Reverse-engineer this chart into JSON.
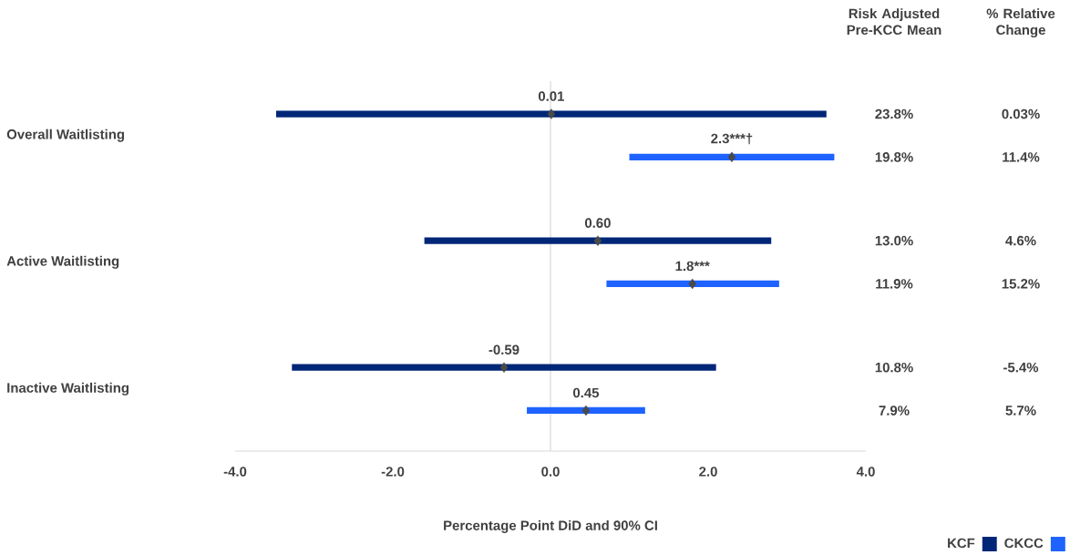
{
  "chart_data": {
    "type": "bar",
    "orientation": "horizontal",
    "xlabel": "Percentage Point DiD and 90% CI",
    "categories": [
      "Overall Waitlisting",
      "Active Waitlisting",
      "Inactive Waitlisting"
    ],
    "xlim": [
      -4,
      4
    ],
    "xticks": [
      {
        "value": -4,
        "label": "-4.0"
      },
      {
        "value": -2,
        "label": "-2.0"
      },
      {
        "value": 0,
        "label": "0.0"
      },
      {
        "value": 2,
        "label": "2.0"
      },
      {
        "value": 4,
        "label": "4.0"
      }
    ],
    "marker": "diamond",
    "legend": "bottom right",
    "ref_lines": [
      {
        "axis": "x",
        "value": 0,
        "color": "#d9d9d9"
      }
    ],
    "series": [
      {
        "name": "KCF",
        "color": "#002677",
        "base": [
          -3.48,
          -1.6,
          -3.28
        ],
        "values": [
          6.98,
          4.4,
          5.38
        ]
      },
      {
        "name": "CKCC",
        "color": "#1e63ff",
        "base": [
          1.0,
          0.71,
          -0.3
        ],
        "values": [
          2.6,
          2.19,
          1.5
        ]
      },
      {
        "type": "scatter",
        "color": "#4a4a4a",
        "x": [
          "Overall Waitlisting",
          "Active Waitlisting",
          "Inactive Waitlisting"
        ],
        "values": [
          0.01,
          0.6,
          -0.59
        ],
        "value_labels": [
          "0.01",
          "0.60",
          "-0.59"
        ]
      },
      {
        "type": "scatter",
        "color": "#4a4a4a",
        "x": [
          "Overall Waitlisting",
          "Active Waitlisting",
          "Inactive Waitlisting"
        ],
        "values": [
          2.3,
          1.8,
          0.45
        ],
        "value_labels": [
          "2.3***†",
          "1.8***",
          "0.45"
        ]
      }
    ],
    "annotations": [
      "Risk Adjusted Pre-KCC Mean",
      "% Relative Change",
      "23.8%",
      "0.03%",
      "19.8%",
      "11.4%",
      "13.0%",
      "4.6%",
      "11.9%",
      "15.2%",
      "10.8%",
      "-5.4%",
      "7.9%",
      "5.7%"
    ]
  }
}
